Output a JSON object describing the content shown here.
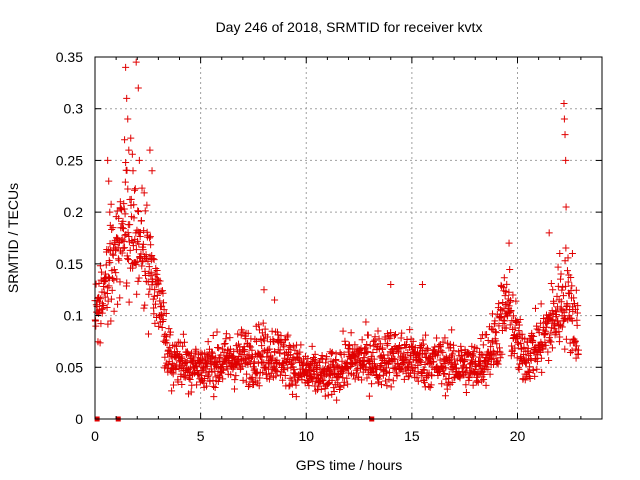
{
  "chart_data": {
    "type": "scatter",
    "title": "Day 246 of 2018, SRMTID for receiver kvtx",
    "xlabel": "GPS time / hours",
    "ylabel": "SRMTID / TECUs",
    "xlim": [
      0,
      24
    ],
    "ylim": [
      0,
      0.35
    ],
    "grid": true,
    "marker": "+",
    "color": "#e00000",
    "xticks": [
      0,
      5,
      10,
      15,
      20
    ],
    "xtick_labels": [
      "0",
      "5",
      "10",
      "15",
      "20"
    ],
    "yticks": [
      0,
      0.05,
      0.1,
      0.15,
      0.2,
      0.25,
      0.3,
      0.35
    ],
    "ytick_labels": [
      "0",
      "0.05",
      "0.1",
      "0.15",
      "0.2",
      "0.25",
      "0.3",
      "0.35"
    ],
    "zero_points_hours": [
      0.1,
      1.1,
      13.1
    ],
    "profile": [
      {
        "t": 0.0,
        "y": 0.09
      },
      {
        "t": 0.5,
        "y": 0.13
      },
      {
        "t": 1.0,
        "y": 0.15
      },
      {
        "t": 1.5,
        "y": 0.19
      },
      {
        "t": 2.0,
        "y": 0.18
      },
      {
        "t": 2.5,
        "y": 0.16
      },
      {
        "t": 3.0,
        "y": 0.11
      },
      {
        "t": 3.5,
        "y": 0.06
      },
      {
        "t": 5.0,
        "y": 0.05
      },
      {
        "t": 7.0,
        "y": 0.06
      },
      {
        "t": 8.5,
        "y": 0.065
      },
      {
        "t": 10.0,
        "y": 0.045
      },
      {
        "t": 11.0,
        "y": 0.04
      },
      {
        "t": 12.0,
        "y": 0.055
      },
      {
        "t": 14.0,
        "y": 0.06
      },
      {
        "t": 16.0,
        "y": 0.055
      },
      {
        "t": 18.0,
        "y": 0.05
      },
      {
        "t": 18.8,
        "y": 0.07
      },
      {
        "t": 19.5,
        "y": 0.11
      },
      {
        "t": 20.2,
        "y": 0.06
      },
      {
        "t": 21.0,
        "y": 0.07
      },
      {
        "t": 21.8,
        "y": 0.1
      },
      {
        "t": 22.3,
        "y": 0.12
      },
      {
        "t": 22.8,
        "y": 0.09
      }
    ],
    "spikes": [
      {
        "t": 0.6,
        "y": 0.25
      },
      {
        "t": 0.65,
        "y": 0.23
      },
      {
        "t": 0.7,
        "y": 0.2
      },
      {
        "t": 1.2,
        "y": 0.21
      },
      {
        "t": 1.4,
        "y": 0.27
      },
      {
        "t": 1.45,
        "y": 0.34
      },
      {
        "t": 1.5,
        "y": 0.31
      },
      {
        "t": 1.55,
        "y": 0.29
      },
      {
        "t": 1.6,
        "y": 0.26
      },
      {
        "t": 1.8,
        "y": 0.24
      },
      {
        "t": 1.95,
        "y": 0.345
      },
      {
        "t": 2.05,
        "y": 0.32
      },
      {
        "t": 2.1,
        "y": 0.25
      },
      {
        "t": 2.6,
        "y": 0.26
      },
      {
        "t": 2.7,
        "y": 0.24
      },
      {
        "t": 8.0,
        "y": 0.125
      },
      {
        "t": 8.5,
        "y": 0.115
      },
      {
        "t": 14.0,
        "y": 0.13
      },
      {
        "t": 15.5,
        "y": 0.13
      },
      {
        "t": 19.6,
        "y": 0.17
      },
      {
        "t": 21.5,
        "y": 0.18
      },
      {
        "t": 22.0,
        "y": 0.16
      },
      {
        "t": 22.2,
        "y": 0.305
      },
      {
        "t": 22.22,
        "y": 0.29
      },
      {
        "t": 22.25,
        "y": 0.275
      },
      {
        "t": 22.28,
        "y": 0.25
      },
      {
        "t": 22.3,
        "y": 0.205
      },
      {
        "t": 22.6,
        "y": 0.16
      }
    ]
  }
}
